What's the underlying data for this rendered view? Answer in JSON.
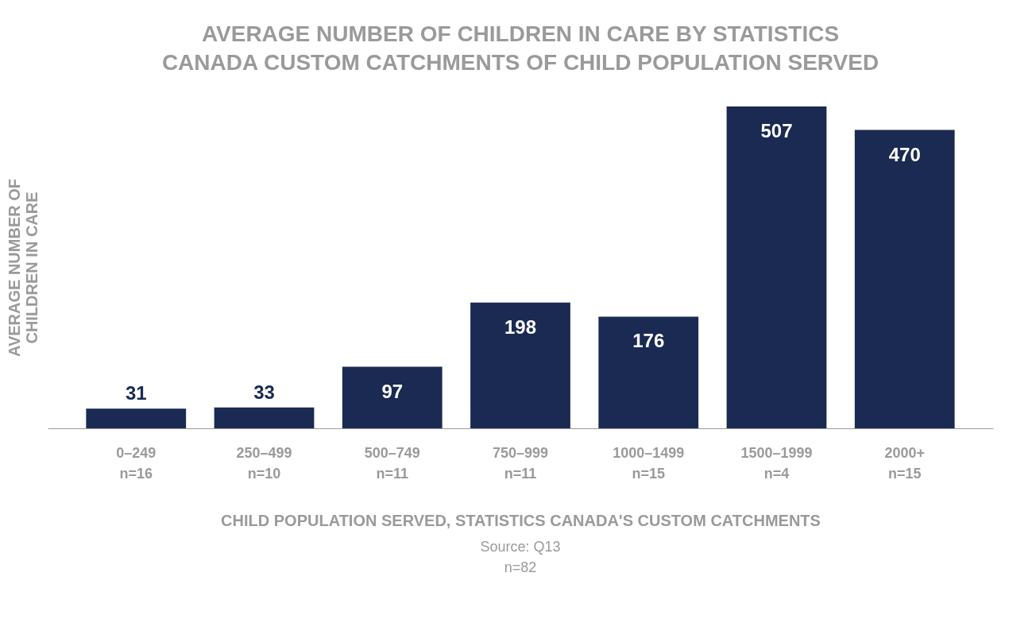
{
  "chart_data": {
    "type": "bar",
    "title": "AVERAGE NUMBER OF CHILDREN IN CARE BY STATISTICS\nCANADA CUSTOM CATCHMENTS OF CHILD POPULATION SERVED",
    "ylabel": "AVERAGE NUMBER OF\nCHILDREN IN CARE",
    "xlabel": "CHILD POPULATION SERVED, STATISTICS CANADA'S CUSTOM CATCHMENTS",
    "categories": [
      "0–249\nn=16",
      "250–499\nn=10",
      "500–749\nn=11",
      "750–999\nn=11",
      "1000–1499\nn=15",
      "1500–1999\nn=4",
      "2000+\nn=15"
    ],
    "values": [
      31,
      33,
      97,
      198,
      176,
      507,
      470
    ],
    "color": "#1a2a52",
    "data_labels": true,
    "annotations": [
      "Source: Q13",
      "n=82"
    ]
  }
}
